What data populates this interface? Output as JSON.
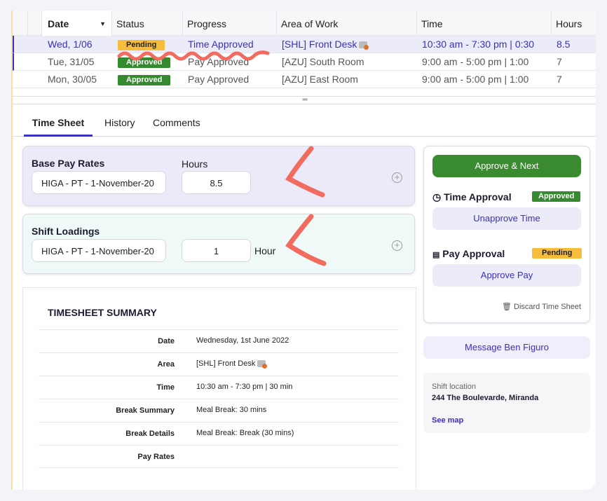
{
  "table": {
    "columns": [
      "Date",
      "Status",
      "Progress",
      "Area of Work",
      "Time",
      "Hours"
    ],
    "rows": [
      {
        "date": "Wed, 1/06",
        "status": "Pending",
        "progress": "Time Approved",
        "area": "[SHL] Front Desk",
        "time": "10:30 am - 7:30 pm | 0:30",
        "hours": "8.5"
      },
      {
        "date": "Tue, 31/05",
        "status": "Approved",
        "progress": "Pay Approved",
        "area": "[AZU] South Room",
        "time": "9:00 am - 5:00 pm | 1:00",
        "hours": "7"
      },
      {
        "date": "Mon, 30/05",
        "status": "Approved",
        "progress": "Pay Approved",
        "area": "[AZU] East Room",
        "time": "9:00 am - 5:00 pm | 1:00",
        "hours": "7"
      }
    ]
  },
  "tabs": [
    "Time Sheet",
    "History",
    "Comments"
  ],
  "base_pay": {
    "title": "Base Pay Rates",
    "hours_label": "Hours",
    "rate": "HIGA - PT - 1-November-20",
    "hours": "8.5"
  },
  "shift_loadings": {
    "title": "Shift Loadings",
    "rate": "HIGA - PT - 1-November-20",
    "hours": "1",
    "unit": "Hour"
  },
  "summary": {
    "title": "TIMESHEET SUMMARY",
    "rows": [
      {
        "k": "Date",
        "v": "Wednesday, 1st June 2022"
      },
      {
        "k": "Area",
        "v": "[SHL] Front Desk"
      },
      {
        "k": "Time",
        "v": "10:30 am - 7:30 pm | 30 min"
      },
      {
        "k": "Break Summary",
        "v": "Meal Break: 30 mins"
      },
      {
        "k": "Break Details",
        "v": "Meal Break: Break (30 mins)"
      },
      {
        "k": "Pay Rates",
        "v": ""
      }
    ]
  },
  "approval": {
    "approve_next": "Approve & Next",
    "time_title": "Time Approval",
    "time_status": "Approved",
    "unapprove": "Unapprove Time",
    "pay_title": "Pay Approval",
    "pay_status": "Pending",
    "approve_pay": "Approve Pay",
    "discard": "Discard Time Sheet"
  },
  "message": "Message Ben Figuro",
  "location": {
    "label": "Shift location",
    "address": "244 The Boulevarde, Miranda",
    "link": "See map"
  },
  "colors": {
    "accent": "#3a2fc0",
    "approved": "#35892f",
    "pending": "#f6bd3d",
    "annotation": "#f26b5f"
  }
}
